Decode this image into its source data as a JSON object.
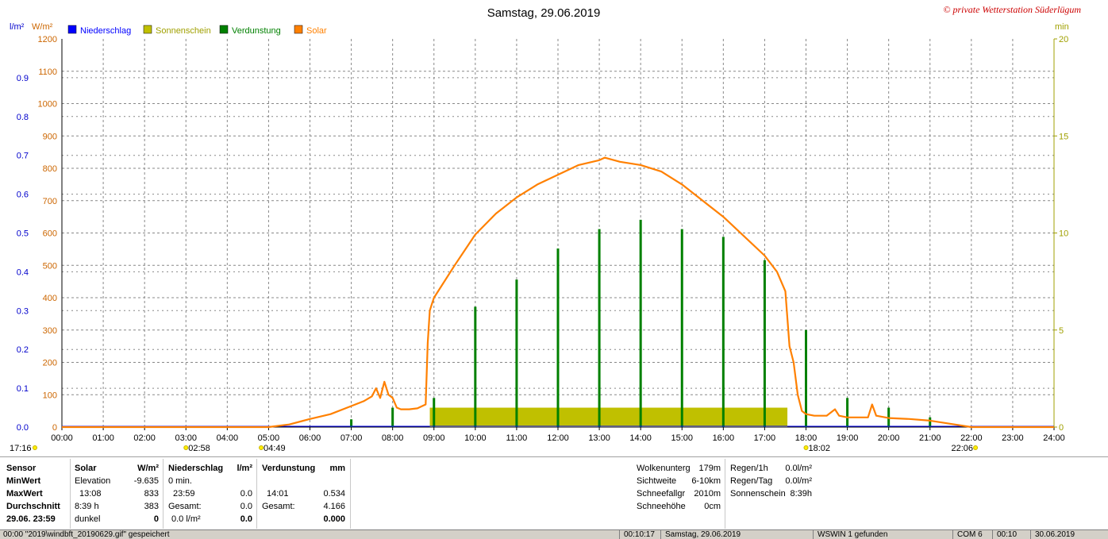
{
  "chart_data": {
    "type": "line",
    "title": "Samstag, 29.06.2019",
    "copyright": "© private Wetterstation Süderlügum",
    "left_axis_labels": [
      "l/m²",
      "W/m²"
    ],
    "right_axis_label": "min",
    "legend": [
      {
        "name": "Niederschlag",
        "color": "#0000ff"
      },
      {
        "name": "Sonnenschein",
        "color": "#c0c000"
      },
      {
        "name": "Verdunstung",
        "color": "#008000"
      },
      {
        "name": "Solar",
        "color": "#ff8000"
      }
    ],
    "x_range_hours": [
      0,
      24
    ],
    "x_ticks": [
      "00:00",
      "01:00",
      "02:00",
      "03:00",
      "04:00",
      "05:00",
      "06:00",
      "07:00",
      "08:00",
      "09:00",
      "10:00",
      "11:00",
      "12:00",
      "13:00",
      "14:00",
      "15:00",
      "16:00",
      "17:00",
      "18:00",
      "19:00",
      "20:00",
      "21:00",
      "22:00",
      "23:00",
      "24:00"
    ],
    "y_solar_range": [
      0,
      1200
    ],
    "y_solar_ticks": [
      "0",
      "100",
      "200",
      "300",
      "400",
      "500",
      "600",
      "700",
      "800",
      "900",
      "1000",
      "1100",
      "1200"
    ],
    "y_rain_range": [
      0,
      1.0
    ],
    "y_rain_ticks": [
      "0.0",
      "0.1",
      "0.2",
      "0.3",
      "0.4",
      "0.5",
      "0.6",
      "0.7",
      "0.8",
      "0.9"
    ],
    "y_min_range": [
      0,
      20
    ],
    "y_min_ticks": [
      "0",
      "5",
      "10",
      "15",
      "20"
    ],
    "grid": true,
    "legend_position": "top-left",
    "solar_series": {
      "name": "Solar",
      "x": [
        0,
        5.0,
        5.5,
        6.0,
        6.5,
        7.0,
        7.3,
        7.5,
        7.6,
        7.7,
        7.8,
        7.9,
        8.0,
        8.1,
        8.2,
        8.4,
        8.6,
        8.8,
        8.85,
        8.9,
        8.95,
        9.0,
        9.5,
        10.0,
        10.5,
        11.0,
        11.5,
        12.0,
        12.5,
        13.0,
        13.13,
        13.5,
        14.0,
        14.5,
        15.0,
        15.5,
        16.0,
        16.5,
        17.0,
        17.3,
        17.5,
        17.6,
        17.7,
        17.8,
        17.9,
        18.0,
        18.2,
        18.5,
        18.7,
        18.8,
        19.0,
        19.5,
        19.6,
        19.7,
        20.0,
        20.5,
        21.0,
        21.5,
        22.0,
        22.1,
        24.0
      ],
      "y": [
        0,
        0,
        8,
        25,
        40,
        65,
        80,
        95,
        120,
        90,
        140,
        100,
        90,
        60,
        55,
        55,
        58,
        70,
        260,
        360,
        380,
        400,
        500,
        595,
        660,
        710,
        750,
        780,
        810,
        825,
        833,
        820,
        810,
        790,
        750,
        700,
        650,
        590,
        530,
        480,
        420,
        250,
        200,
        100,
        50,
        40,
        35,
        35,
        55,
        35,
        30,
        30,
        70,
        35,
        28,
        25,
        20,
        10,
        0,
        0,
        0
      ]
    },
    "sunshine_series": {
      "name": "Sonnenschein",
      "blocks": [
        {
          "start_h": 8.9,
          "end_h": 17.55,
          "value_min": 1.0
        }
      ]
    },
    "evaporation_series": {
      "name": "Verdunstung",
      "x": [
        7.0,
        8.0,
        9.0,
        10.0,
        11.0,
        12.0,
        13.0,
        14.0,
        15.0,
        16.0,
        17.0,
        18.0,
        19.0,
        20.0,
        21.0
      ],
      "y": [
        0.02,
        0.05,
        0.075,
        0.31,
        0.38,
        0.46,
        0.51,
        0.534,
        0.51,
        0.49,
        0.43,
        0.25,
        0.075,
        0.05,
        0.025
      ]
    },
    "markers": [
      {
        "label": "17:16",
        "x_h": 0
      },
      {
        "label": "02:58",
        "x_h": 3.0
      },
      {
        "label": "04:49",
        "x_h": 4.82
      },
      {
        "label": "18:02",
        "x_h": 18.0
      },
      {
        "label": "22:06",
        "x_h": 22.1
      }
    ]
  },
  "stats_panel": {
    "labels_col": {
      "sensor": "Sensor",
      "min": "MinWert",
      "max": "MaxWert",
      "avg": "Durchschnitt",
      "date": "29.06.  23:59"
    },
    "solar_col": {
      "head": "Solar",
      "unit": "W/m²",
      "r1_l": "Elevation",
      "r1_v": "-9.635",
      "r2_l": "13:08",
      "r2_v": "833",
      "r3_l": "8:39 h",
      "r3_v": "383",
      "r4_l": "dunkel",
      "r4_v": "0"
    },
    "rain_col": {
      "head": "Niederschlag",
      "unit": "l/m²",
      "r1_l": "0 min.",
      "r2_l": "23:59",
      "r2_v": "0.0",
      "r3_l": "Gesamt:",
      "r3_v": "0.0",
      "r4_l": "0.0 l/m²",
      "r4_v": "0.0"
    },
    "evap_col": {
      "head": "Verdunstung",
      "unit": "mm",
      "r2_l": "14:01",
      "r2_v": "0.534",
      "r3_l": "Gesamt:",
      "r3_v": "4.166",
      "r4_v": "0.000"
    },
    "weather_col": {
      "r1_l": "Wolkenunterg",
      "r1_v": "179m",
      "r2_l": "Sichtweite",
      "r2_v": "6-10km",
      "r3_l": "Schneefallgr",
      "r3_v": "2010m",
      "r4_l": "Schneehöhe",
      "r4_v": "0cm"
    },
    "rain2_col": {
      "r1_l": "Regen/1h",
      "r1_v": "0.0l/m²",
      "r2_l": "Regen/Tag",
      "r2_v": "0.0l/m²",
      "r3_l": "Sonnenschein",
      "r3_v": "8:39h"
    }
  },
  "status_bar": {
    "s1": "00:00  \"2019\\windbft_20190629.gif\"  gespeichert",
    "s2": "00:10:17",
    "s3": "Samstag, 29.06.2019",
    "s4": "WSWIN 1 gefunden",
    "s5": "COM 6",
    "s6": "00:10",
    "s7": "30.06.2019"
  }
}
